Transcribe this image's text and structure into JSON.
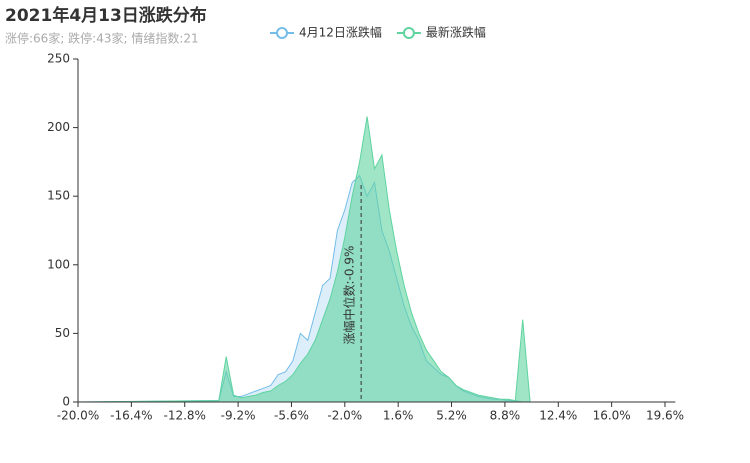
{
  "chart_data": {
    "type": "area",
    "title": "2021年4月13日涨跌分布",
    "subtitle": "涨停:66家; 跌停:43家; 情绪指数:21",
    "x": [
      -20,
      -11,
      -10.5,
      -10,
      -9.5,
      -9,
      -8.5,
      -8,
      -7.5,
      -7,
      -6.5,
      -6,
      -5.5,
      -5,
      -4.5,
      -4,
      -3.5,
      -3,
      -2.5,
      -2,
      -1.5,
      -1,
      -0.5,
      0,
      0.5,
      1,
      1.5,
      2,
      2.5,
      3,
      3.5,
      4,
      4.5,
      5,
      5.5,
      6,
      6.5,
      7,
      7.5,
      8,
      8.5,
      9,
      9.5,
      10,
      10.5,
      20
    ],
    "series": [
      {
        "name": "4月12日涨跌幅",
        "color": "#74bde8",
        "values": [
          0,
          1,
          1,
          22,
          4,
          4,
          6,
          8,
          10,
          12,
          20,
          22,
          30,
          50,
          45,
          65,
          85,
          90,
          125,
          140,
          160,
          165,
          150,
          160,
          125,
          110,
          90,
          70,
          55,
          45,
          30,
          25,
          20,
          18,
          12,
          8,
          6,
          4,
          3,
          2,
          2,
          1,
          1,
          0,
          0,
          0
        ]
      },
      {
        "name": "最新涨跌幅",
        "color": "#5fd3a0",
        "values": [
          0,
          1,
          1,
          33,
          5,
          3,
          4,
          5,
          7,
          8,
          12,
          15,
          20,
          28,
          35,
          45,
          60,
          75,
          95,
          120,
          150,
          175,
          208,
          170,
          180,
          140,
          110,
          85,
          65,
          50,
          38,
          30,
          22,
          18,
          12,
          9,
          7,
          5,
          4,
          3,
          2,
          2,
          1,
          60,
          0,
          0
        ]
      }
    ],
    "annotation": {
      "label": "涨幅中位数:-0.9%",
      "x": -0.9
    },
    "xlim": [
      -20,
      20.3
    ],
    "xticks": [
      {
        "value": -20,
        "label": "-20.0%"
      },
      {
        "value": -16.4,
        "label": "-16.4%"
      },
      {
        "value": -12.8,
        "label": "-12.8%"
      },
      {
        "value": -9.2,
        "label": "-9.2%"
      },
      {
        "value": -5.6,
        "label": "-5.6%"
      },
      {
        "value": -2,
        "label": "-2.0%"
      },
      {
        "value": 1.6,
        "label": "1.6%"
      },
      {
        "value": 5.2,
        "label": "5.2%"
      },
      {
        "value": 8.8,
        "label": "8.8%"
      },
      {
        "value": 12.4,
        "label": "12.4%"
      },
      {
        "value": 16,
        "label": "16.0%"
      },
      {
        "value": 19.6,
        "label": "19.6%"
      }
    ],
    "ylim": [
      0,
      250
    ],
    "yticks": [
      0,
      50,
      100,
      150,
      200,
      250
    ],
    "grid": false
  }
}
